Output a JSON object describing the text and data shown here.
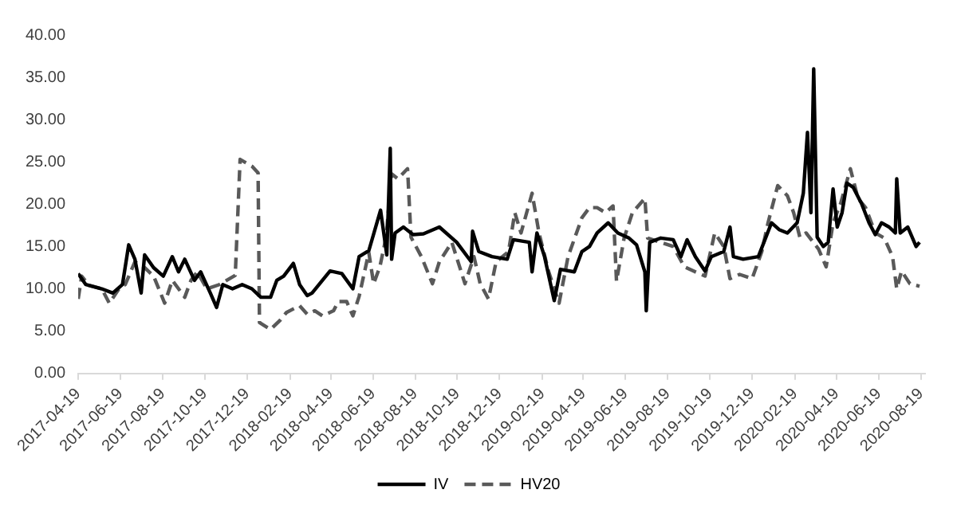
{
  "chart_data": {
    "type": "line",
    "legend": "bottom",
    "grid": false,
    "marker": "none",
    "xlim": [
      "2017-04-19",
      "2020-08-25"
    ],
    "xticks": [
      "2017-04-19",
      "2017-06-19",
      "2017-08-19",
      "2017-10-19",
      "2017-12-19",
      "2018-02-19",
      "2018-04-19",
      "2018-06-19",
      "2018-08-19",
      "2018-10-19",
      "2018-12-19",
      "2019-02-19",
      "2019-04-19",
      "2019-06-19",
      "2019-08-19",
      "2019-10-19",
      "2019-12-19",
      "2020-02-19",
      "2020-04-19",
      "2020-06-19",
      "2020-08-19"
    ],
    "ylim": [
      0,
      40
    ],
    "yticks": [
      {
        "value": 0,
        "label": "0.00"
      },
      {
        "value": 5,
        "label": "5.00"
      },
      {
        "value": 10,
        "label": "10.00"
      },
      {
        "value": 15,
        "label": "15.00"
      },
      {
        "value": 20,
        "label": "20.00"
      },
      {
        "value": 25,
        "label": "25.00"
      },
      {
        "value": 30,
        "label": "30.00"
      },
      {
        "value": 35,
        "label": "35.00"
      },
      {
        "value": 40,
        "label": "40.00"
      }
    ],
    "series": [
      {
        "name": "IV",
        "color": "#000000",
        "line_style": "solid",
        "x": [
          "2017-04-19",
          "2017-04-30",
          "2017-05-23",
          "2017-06-08",
          "2017-06-22",
          "2017-07-01",
          "2017-07-10",
          "2017-07-19",
          "2017-07-24",
          "2017-08-06",
          "2017-08-20",
          "2017-09-02",
          "2017-09-11",
          "2017-09-20",
          "2017-10-04",
          "2017-10-13",
          "2017-10-27",
          "2017-11-05",
          "2017-11-14",
          "2017-11-28",
          "2017-12-12",
          "2017-12-26",
          "2018-01-08",
          "2018-01-22",
          "2018-01-31",
          "2018-02-10",
          "2018-02-24",
          "2018-03-05",
          "2018-03-16",
          "2018-03-23",
          "2018-04-18",
          "2018-05-05",
          "2018-05-21",
          "2018-05-30",
          "2018-06-13",
          "2018-06-30",
          "2018-07-09",
          "2018-07-14",
          "2018-07-16",
          "2018-07-21",
          "2018-08-02",
          "2018-08-16",
          "2018-08-31",
          "2018-09-23",
          "2018-10-18",
          "2018-11-08",
          "2018-11-10",
          "2018-11-19",
          "2018-12-08",
          "2018-12-30",
          "2019-01-08",
          "2019-01-31",
          "2019-02-04",
          "2019-02-11",
          "2019-02-22",
          "2019-03-08",
          "2019-03-17",
          "2019-04-06",
          "2019-04-17",
          "2019-04-28",
          "2019-05-09",
          "2019-05-25",
          "2019-06-08",
          "2019-06-24",
          "2019-07-05",
          "2019-07-17",
          "2019-07-19",
          "2019-07-24",
          "2019-08-09",
          "2019-08-27",
          "2019-09-07",
          "2019-09-16",
          "2019-09-28",
          "2019-10-12",
          "2019-10-21",
          "2019-11-08",
          "2019-11-17",
          "2019-11-22",
          "2019-12-06",
          "2019-12-28",
          "2020-01-16",
          "2020-01-27",
          "2020-02-08",
          "2020-02-22",
          "2020-03-02",
          "2020-03-08",
          "2020-03-13",
          "2020-03-17",
          "2020-03-22",
          "2020-03-31",
          "2020-04-07",
          "2020-04-14",
          "2020-04-20",
          "2020-04-27",
          "2020-05-04",
          "2020-05-13",
          "2020-05-25",
          "2020-06-05",
          "2020-06-14",
          "2020-06-23",
          "2020-07-04",
          "2020-07-13",
          "2020-07-15",
          "2020-07-20",
          "2020-07-31",
          "2020-08-12",
          "2020-08-17"
        ],
        "values": [
          11.8,
          10.5,
          10,
          9.5,
          10.5,
          15.2,
          13.5,
          9.5,
          14,
          12.5,
          11.5,
          13.8,
          12,
          13.5,
          11,
          12,
          9.5,
          7.8,
          10.5,
          10,
          10.5,
          10,
          9,
          9,
          11,
          11.5,
          13,
          10.5,
          9.2,
          9.5,
          12.1,
          11.8,
          10,
          13.8,
          14.5,
          19.3,
          14,
          26.6,
          13.5,
          16.6,
          17.3,
          16.4,
          16.5,
          17.3,
          15.5,
          13.2,
          16.8,
          14.4,
          13.8,
          13.5,
          15.8,
          15.5,
          12,
          16.6,
          13.8,
          8.6,
          12.3,
          12,
          14.4,
          15,
          16.6,
          17.8,
          16.6,
          16,
          15.2,
          12,
          7.4,
          15.5,
          16,
          15.8,
          13.8,
          15.8,
          13.8,
          12.1,
          13.8,
          14.4,
          17.3,
          13.8,
          13.5,
          13.8,
          17.8,
          17,
          16.6,
          17.8,
          21.3,
          28.5,
          19,
          36,
          16.1,
          15,
          15.5,
          21.8,
          17.3,
          19,
          22.5,
          22,
          20.1,
          17.8,
          16.4,
          17.8,
          17.3,
          16.6,
          23,
          16.6,
          17.3,
          15,
          15.5
        ]
      },
      {
        "name": "HV20",
        "color": "#595959",
        "line_style": "dashed",
        "x": [
          "2017-04-19",
          "2017-04-24",
          "2017-05-05",
          "2017-05-23",
          "2017-06-03",
          "2017-06-17",
          "2017-06-26",
          "2017-07-10",
          "2017-07-24",
          "2017-08-06",
          "2017-08-22",
          "2017-09-02",
          "2017-09-20",
          "2017-09-29",
          "2017-10-08",
          "2017-10-22",
          "2017-11-09",
          "2017-12-02",
          "2017-12-09",
          "2017-12-26",
          "2018-01-04",
          "2018-01-06",
          "2018-01-22",
          "2018-02-05",
          "2018-02-14",
          "2018-03-05",
          "2018-03-16",
          "2018-03-27",
          "2018-04-07",
          "2018-04-23",
          "2018-04-30",
          "2018-05-12",
          "2018-05-21",
          "2018-05-30",
          "2018-06-13",
          "2018-06-20",
          "2018-06-29",
          "2018-07-08",
          "2018-07-16",
          "2018-07-25",
          "2018-08-08",
          "2018-08-13",
          "2018-08-28",
          "2018-09-13",
          "2018-09-23",
          "2018-10-11",
          "2018-10-30",
          "2018-11-12",
          "2018-11-21",
          "2018-12-03",
          "2018-12-14",
          "2019-01-01",
          "2019-01-10",
          "2019-01-19",
          "2019-02-04",
          "2019-02-14",
          "2019-02-28",
          "2019-03-15",
          "2019-03-28",
          "2019-04-17",
          "2019-04-28",
          "2019-05-09",
          "2019-05-21",
          "2019-06-01",
          "2019-06-06",
          "2019-06-17",
          "2019-06-29",
          "2019-07-17",
          "2019-07-21",
          "2019-08-09",
          "2019-08-27",
          "2019-09-12",
          "2019-09-28",
          "2019-10-12",
          "2019-10-26",
          "2019-11-08",
          "2019-11-17",
          "2019-12-01",
          "2019-12-19",
          "2020-01-02",
          "2020-01-11",
          "2020-01-25",
          "2020-02-08",
          "2020-02-17",
          "2020-02-26",
          "2020-03-06",
          "2020-03-24",
          "2020-04-04",
          "2020-04-14",
          "2020-04-25",
          "2020-05-09",
          "2020-05-20",
          "2020-05-31",
          "2020-06-14",
          "2020-06-27",
          "2020-07-09",
          "2020-07-15",
          "2020-07-22",
          "2020-08-03",
          "2020-08-17"
        ],
        "values": [
          8.8,
          11.5,
          10.4,
          10,
          8.3,
          10,
          10.5,
          13.2,
          12.5,
          11.5,
          8.3,
          11,
          9,
          11,
          12,
          10,
          10.5,
          11.6,
          25.3,
          24.5,
          23.7,
          6,
          5.2,
          6.3,
          7.2,
          8,
          7,
          7.4,
          6.8,
          7.4,
          8.5,
          8.5,
          6.8,
          9.1,
          14.3,
          10.6,
          12.6,
          16.1,
          23.6,
          23,
          24.2,
          16.1,
          13.8,
          10.6,
          13.2,
          15.5,
          10.6,
          13.8,
          10.6,
          8.8,
          13.2,
          14.4,
          19,
          16.6,
          21.3,
          16.6,
          12,
          8.3,
          13.8,
          18.4,
          19.6,
          19.6,
          19,
          19.8,
          10.9,
          16,
          19,
          20.7,
          16,
          15.5,
          15,
          12.6,
          12,
          11.5,
          16.6,
          15,
          11.2,
          11.7,
          11.2,
          14.4,
          17.8,
          22.2,
          21,
          19,
          16.1,
          16.6,
          14.7,
          12.6,
          17.8,
          20.1,
          24.2,
          20.7,
          19.6,
          16.6,
          16,
          13.8,
          10,
          12.1,
          10.6,
          10.3
        ]
      }
    ]
  }
}
